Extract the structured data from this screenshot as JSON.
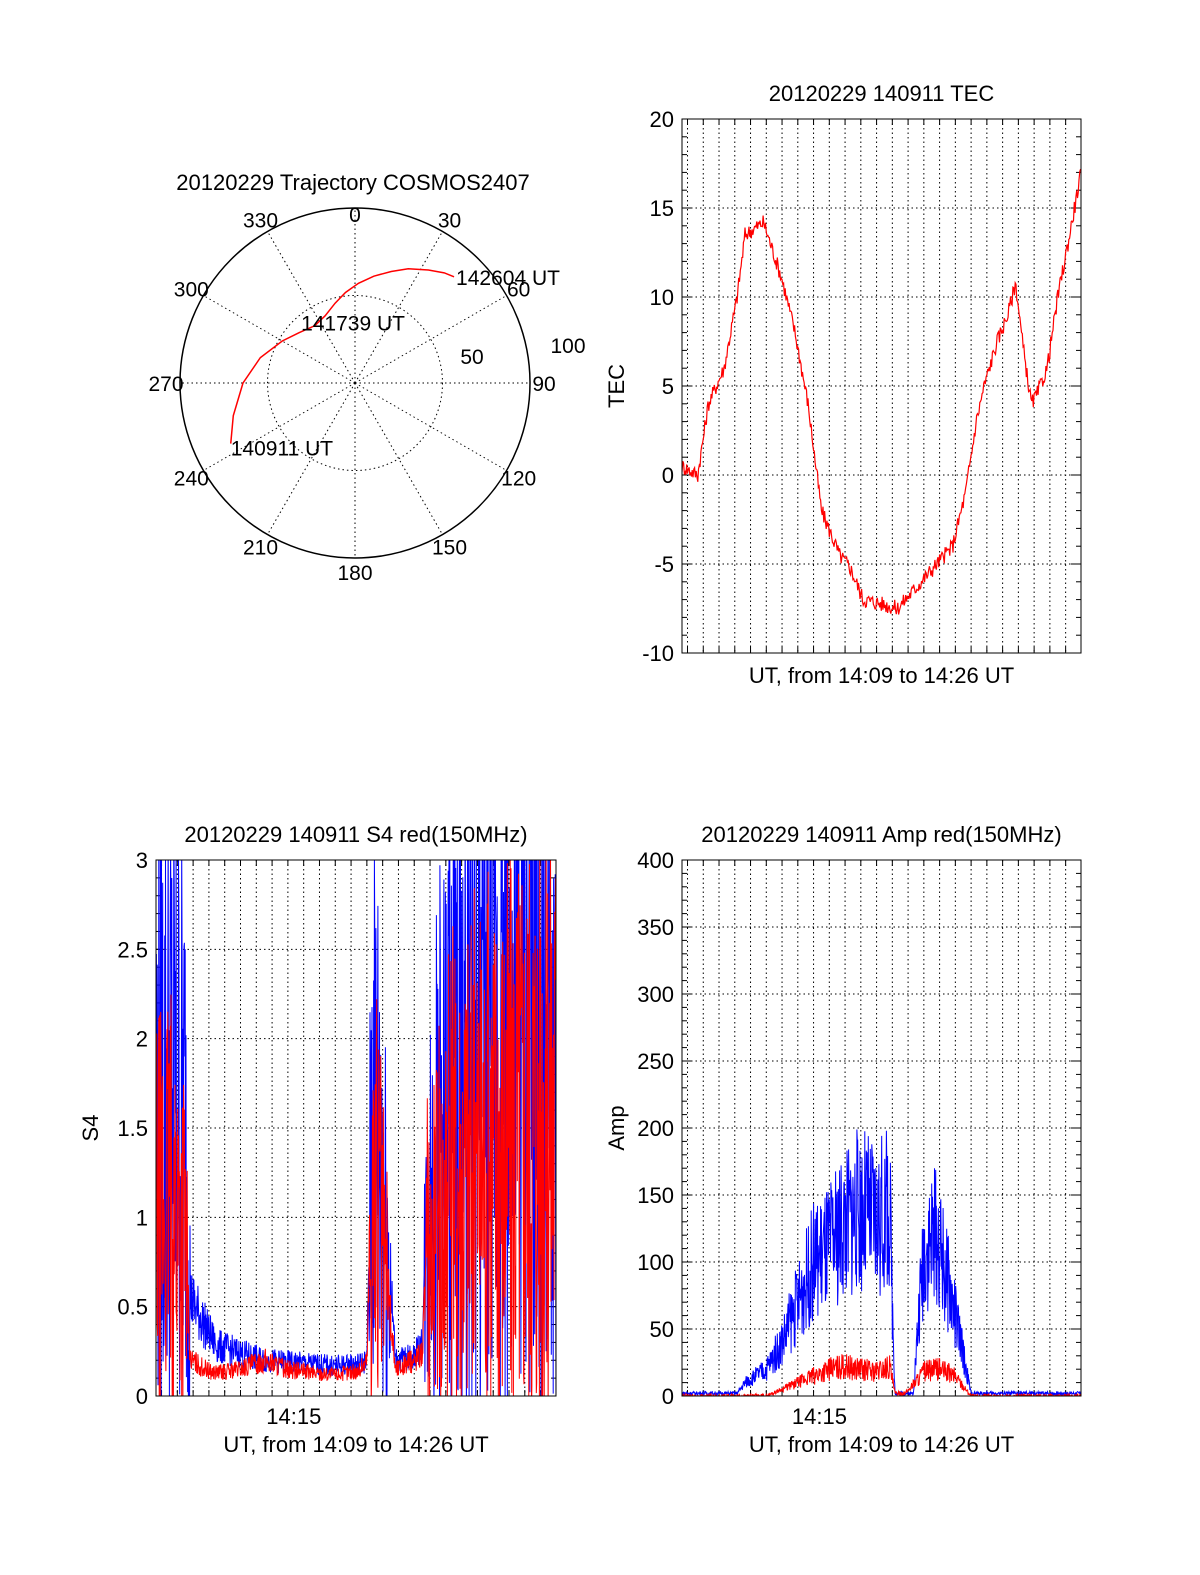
{
  "chart_data": [
    {
      "type": "polar",
      "title": "20120229 Trajectory COSMOS2407",
      "angle_labels": [
        "0",
        "30",
        "60",
        "90",
        "120",
        "150",
        "180",
        "210",
        "240",
        "270",
        "300",
        "330"
      ],
      "radius_labels": [
        "50",
        "100"
      ],
      "color": "#ff0000",
      "track": [
        [
          244,
          79
        ],
        [
          255,
          72
        ],
        [
          270,
          64
        ],
        [
          285,
          56
        ],
        [
          300,
          48
        ],
        [
          312,
          43
        ],
        [
          325,
          40
        ],
        [
          336,
          42
        ],
        [
          346,
          47
        ],
        [
          354,
          52
        ],
        [
          2,
          57
        ],
        [
          10,
          62
        ],
        [
          18,
          67
        ],
        [
          25,
          72
        ],
        [
          33,
          77
        ],
        [
          39,
          81
        ],
        [
          43,
          83
        ]
      ],
      "annotations": [
        {
          "text": "142604 UT",
          "at": [
            43,
            83
          ]
        },
        {
          "text": "141739 UT",
          "at": [
            312,
            43
          ]
        },
        {
          "text": "140911 UT",
          "at": [
            244,
            79
          ]
        }
      ]
    },
    {
      "type": "line",
      "title": "20120229 140911 TEC",
      "xlabel": "UT, from 14:09 to 14:26 UT",
      "ylabel": "TEC",
      "xlim": [
        "14:09:11",
        "14:26:04"
      ],
      "ylim": [
        -10,
        20
      ],
      "yticks": [
        "-10",
        "-5",
        "0",
        "5",
        "10",
        "15",
        "20"
      ],
      "grid": true,
      "series": [
        {
          "color": "#ff0000",
          "x": [
            "14:09:11",
            "14:09:51",
            "14:10:18",
            "14:10:58",
            "14:11:31",
            "14:11:51",
            "14:12:38",
            "14:13:25",
            "14:13:58",
            "14:14:31",
            "14:15:05",
            "14:15:51",
            "14:16:18",
            "14:16:51",
            "14:17:31",
            "14:18:18",
            "14:18:58",
            "14:19:58",
            "14:20:38",
            "14:21:11",
            "14:21:38",
            "14:21:58",
            "14:22:31",
            "14:22:58",
            "14:23:18",
            "14:23:38",
            "14:23:58",
            "14:24:12",
            "14:24:38",
            "14:25:05",
            "14:25:31",
            "14:26:04"
          ],
          "y": [
            0.5,
            0,
            4,
            6,
            10,
            13.5,
            14.2,
            11,
            8,
            4,
            -2,
            -4.5,
            -5.2,
            -7,
            -7.2,
            -7.5,
            -6.5,
            -5,
            -4,
            -1,
            3,
            5,
            7.5,
            9,
            10.8,
            7,
            4,
            4.5,
            6,
            10,
            13,
            17
          ]
        }
      ]
    },
    {
      "type": "line",
      "title": "20120229 140911 S4 red(150MHz)",
      "xlabel": "UT, from 14:09 to 14:26 UT",
      "ylabel": "S4",
      "xlim": [
        "14:09:11",
        "14:26:04"
      ],
      "ylim": [
        0,
        3
      ],
      "yticks": [
        "0",
        "0.5",
        "1",
        "1.5",
        "2",
        "2.5",
        "3"
      ],
      "xticks": [
        "14:15"
      ],
      "grid": true,
      "series": [
        {
          "color": "#0000ff",
          "x": [
            "14:09:11",
            "14:09:45",
            "14:10:25",
            "14:10:38",
            "14:11:25",
            "14:11:45",
            "14:12:45",
            "14:13:45",
            "14:14:45",
            "14:15:45",
            "14:16:45",
            "14:17:45",
            "14:18:05",
            "14:18:18",
            "14:18:38",
            "14:19:18",
            "14:20:05",
            "14:20:25",
            "14:20:38",
            "14:21:05",
            "14:21:45",
            "14:22:45",
            "14:23:45",
            "14:24:45",
            "14:25:38",
            "14:26:04"
          ],
          "y": [
            1.6,
            1.75,
            1.5,
            0.55,
            0.35,
            0.28,
            0.24,
            0.2,
            0.19,
            0.18,
            0.17,
            0.18,
            0.2,
            1.6,
            1.5,
            0.2,
            0.22,
            0.3,
            1.0,
            1.4,
            1.7,
            1.8,
            1.9,
            2.0,
            1.8,
            1.6
          ]
        },
        {
          "color": "#ff0000",
          "x": [
            "14:09:11",
            "14:09:45",
            "14:10:25",
            "14:10:38",
            "14:11:25",
            "14:11:45",
            "14:12:45",
            "14:13:45",
            "14:14:45",
            "14:15:45",
            "14:16:45",
            "14:17:45",
            "14:18:05",
            "14:18:18",
            "14:18:38",
            "14:19:18",
            "14:20:05",
            "14:20:25",
            "14:20:38",
            "14:21:05",
            "14:21:45",
            "14:22:45",
            "14:23:45",
            "14:24:45",
            "14:25:38",
            "14:26:04"
          ],
          "y": [
            1.0,
            1.1,
            0.9,
            0.2,
            0.14,
            0.13,
            0.15,
            0.2,
            0.15,
            0.13,
            0.12,
            0.14,
            0.2,
            1.2,
            1.0,
            0.15,
            0.2,
            0.25,
            0.8,
            1.0,
            1.3,
            1.4,
            1.5,
            1.6,
            1.7,
            1.7
          ]
        }
      ]
    },
    {
      "type": "line",
      "title": "20120229 140911 Amp red(150MHz)",
      "xlabel": "UT, from 14:09 to 14:26 UT",
      "ylabel": "Amp",
      "xlim": [
        "14:09:11",
        "14:26:04"
      ],
      "ylim": [
        0,
        400
      ],
      "yticks": [
        "0",
        "50",
        "100",
        "150",
        "200",
        "250",
        "300",
        "350",
        "400"
      ],
      "xticks": [
        "14:15"
      ],
      "grid": true,
      "series": [
        {
          "color": "#0000ff",
          "x": [
            "14:09:11",
            "14:11:31",
            "14:11:51",
            "14:12:45",
            "14:13:25",
            "14:14:05",
            "14:14:45",
            "14:15:25",
            "14:16:05",
            "14:16:45",
            "14:17:25",
            "14:17:58",
            "14:18:12",
            "14:18:58",
            "14:19:25",
            "14:19:58",
            "14:20:45",
            "14:21:25",
            "14:26:04"
          ],
          "y": [
            2,
            2,
            10,
            20,
            40,
            70,
            100,
            110,
            130,
            140,
            130,
            140,
            2,
            2,
            110,
            120,
            60,
            2,
            2
          ]
        },
        {
          "color": "#ff0000",
          "x": [
            "14:09:11",
            "14:12:45",
            "14:13:25",
            "14:14:05",
            "14:14:45",
            "14:15:25",
            "14:16:05",
            "14:16:45",
            "14:17:25",
            "14:17:58",
            "14:18:12",
            "14:18:38",
            "14:19:25",
            "14:20:05",
            "14:20:45",
            "14:21:25"
          ],
          "y": [
            0,
            0,
            5,
            10,
            15,
            20,
            22,
            20,
            18,
            22,
            2,
            2,
            18,
            20,
            15,
            0
          ]
        }
      ]
    }
  ]
}
